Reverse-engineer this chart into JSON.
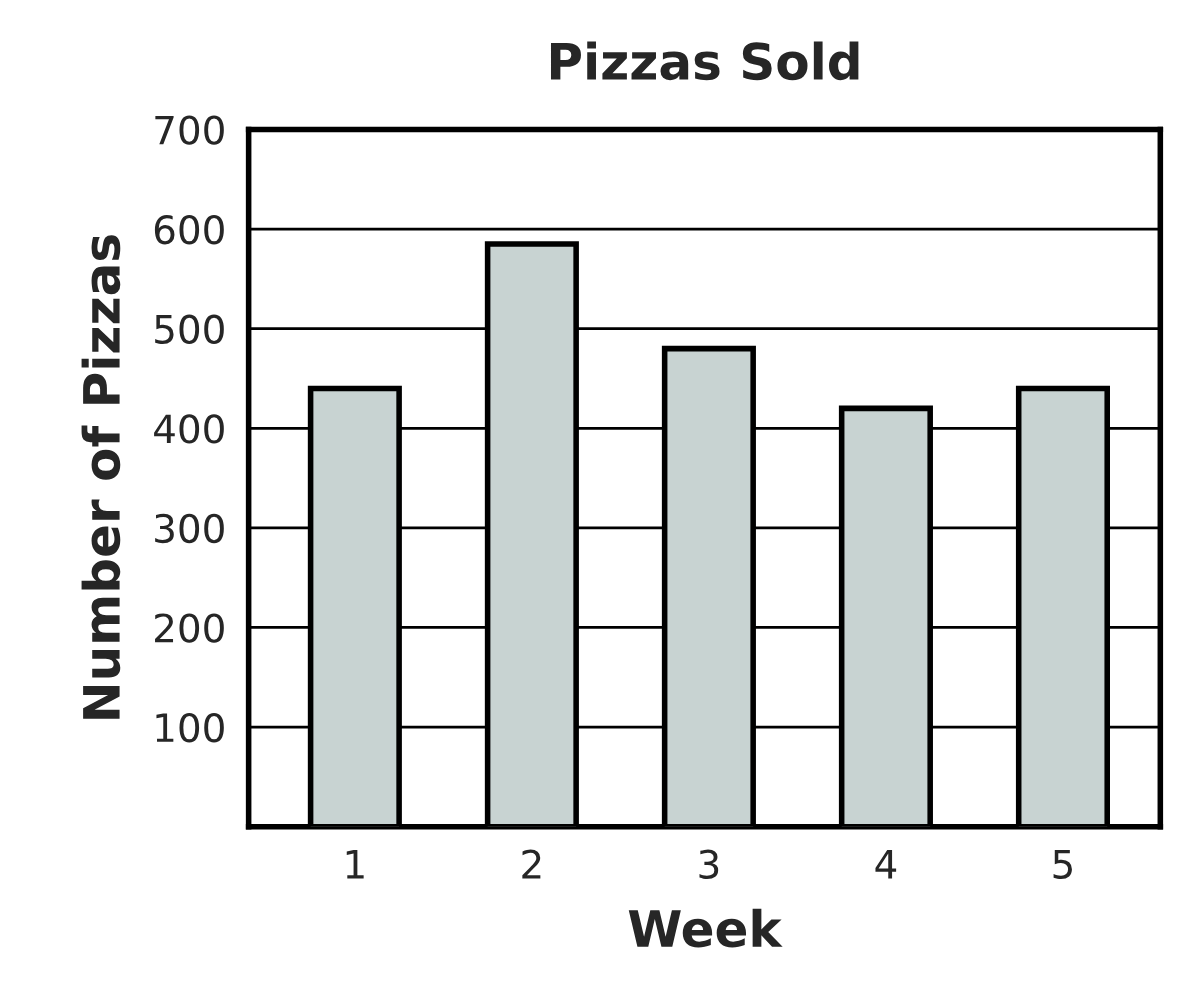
{
  "chart_data": {
    "type": "bar",
    "title": "Pizzas Sold",
    "xlabel": "Week",
    "ylabel": "Number of Pizzas",
    "categories": [
      "1",
      "2",
      "3",
      "4",
      "5"
    ],
    "values": [
      440,
      585,
      480,
      420,
      440
    ],
    "color": "#c8d3d2",
    "ylim": [
      0,
      700
    ],
    "yticks": [
      100,
      200,
      300,
      400,
      500,
      600,
      700
    ],
    "grid": "y"
  }
}
